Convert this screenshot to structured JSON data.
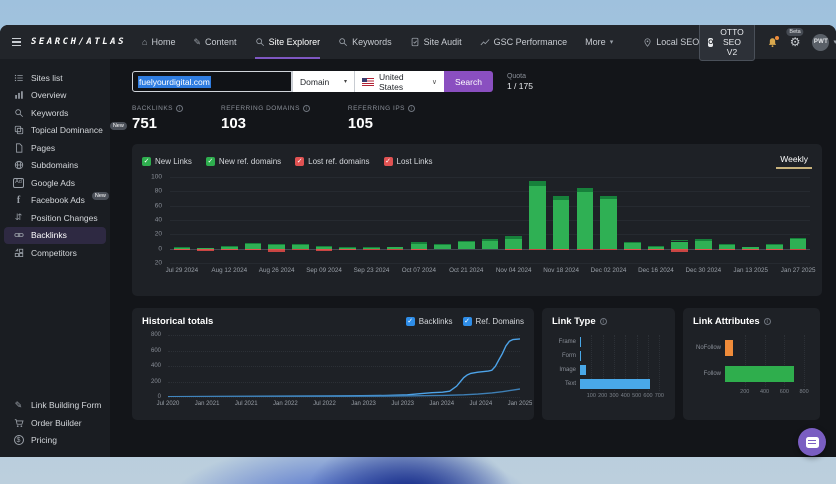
{
  "topnav": {
    "logo": "SEARCH/ATLAS",
    "items": [
      {
        "label": "Home",
        "icon": "home"
      },
      {
        "label": "Content",
        "icon": "pencil"
      },
      {
        "label": "Site Explorer",
        "icon": "search",
        "active": true
      },
      {
        "label": "Keywords",
        "icon": "search"
      },
      {
        "label": "Site Audit",
        "icon": "audit"
      },
      {
        "label": "GSC Performance",
        "icon": "chartline"
      },
      {
        "label": "More",
        "icon": "",
        "caret": true
      }
    ],
    "local_seo": "Local SEO",
    "otto_button": "OTTO SEO V2",
    "beta_badge": "Beta",
    "avatar": "PWT"
  },
  "sidebar": {
    "items": [
      {
        "label": "Sites list",
        "icon": "list"
      },
      {
        "label": "Overview",
        "icon": "bars"
      },
      {
        "label": "Keywords",
        "icon": "search"
      },
      {
        "label": "Topical Dominance",
        "icon": "copy",
        "badge": "New"
      },
      {
        "label": "Pages",
        "icon": "doc"
      },
      {
        "label": "Subdomains",
        "icon": "globe"
      },
      {
        "label": "Google Ads",
        "icon": "ad"
      },
      {
        "label": "Facebook Ads",
        "icon": "fb",
        "badge": "New"
      },
      {
        "label": "Position Changes",
        "icon": "updown"
      },
      {
        "label": "Backlinks",
        "icon": "chain",
        "active": true
      },
      {
        "label": "Competitors",
        "icon": "grid"
      }
    ],
    "footer_items": [
      {
        "label": "Link Building Form",
        "icon": "penrocket"
      },
      {
        "label": "Order Builder",
        "icon": "cart"
      },
      {
        "label": "Pricing",
        "icon": "dollar"
      }
    ]
  },
  "search": {
    "query": "fuelyourdigital.com",
    "type_select": "Domain",
    "country_select": "United States",
    "button": "Search",
    "quota_label": "Quota",
    "quota_value": "1 / 175"
  },
  "stats": [
    {
      "label": "BACKLINKS",
      "value": "751"
    },
    {
      "label": "REFERRING DOMAINS",
      "value": "103"
    },
    {
      "label": "REFERRING IPS",
      "value": "105"
    }
  ],
  "chart_data": [
    {
      "id": "weekly_changes",
      "type": "bar",
      "period_tab": "Weekly",
      "legend": [
        {
          "label": "New Links",
          "color": "#2eae4e"
        },
        {
          "label": "New ref. domains",
          "color": "#2eae4e"
        },
        {
          "label": "Lost ref. domains",
          "color": "#e05252"
        },
        {
          "label": "Lost Links",
          "color": "#e05252"
        }
      ],
      "x_labels": [
        "Jul 29 2024",
        "Aug 12 2024",
        "Aug 26 2024",
        "Sep 09 2024",
        "Sep 23 2024",
        "Oct 07 2024",
        "Oct 21 2024",
        "Nov 04 2024",
        "Nov 18 2024",
        "Dec 02 2024",
        "Dec 16 2024",
        "Dec 30 2024",
        "Jan 13 2025",
        "Jan 27 2025"
      ],
      "weeks": 27,
      "ylim": [
        -20,
        100
      ],
      "yticks": [
        100,
        80,
        60,
        40,
        20,
        0,
        -20
      ],
      "series": [
        {
          "name": "New Links",
          "color": "#2fb054",
          "values": [
            1,
            1,
            3,
            6,
            5,
            5,
            3,
            2,
            2,
            2,
            7,
            6,
            9,
            11,
            14,
            88,
            68,
            79,
            69,
            8,
            3,
            10,
            11,
            6,
            3,
            5,
            13
          ]
        },
        {
          "name": "New ref. domains",
          "color": "#17813b",
          "values": [
            1,
            0,
            1,
            2,
            1,
            1,
            1,
            1,
            1,
            0,
            2,
            1,
            2,
            2,
            3,
            7,
            5,
            6,
            5,
            2,
            1,
            2,
            2,
            1,
            0,
            1,
            2
          ]
        },
        {
          "name": "Lost ref. domains",
          "color": "#e0524f",
          "values": [
            -1,
            -2,
            -1,
            -1,
            -2,
            -1,
            -2,
            -1,
            -1,
            -1,
            -1,
            0,
            0,
            0,
            -1,
            0,
            -1,
            0,
            -1,
            -1,
            -1,
            -2,
            -1,
            -1,
            -1,
            -1,
            0
          ]
        },
        {
          "name": "Lost Links",
          "color": "#c94543",
          "values": [
            0,
            -1,
            0,
            0,
            -2,
            -1,
            -1,
            0,
            -1,
            -1,
            0,
            0,
            0,
            0,
            0,
            -1,
            0,
            -1,
            -1,
            0,
            0,
            -2,
            0,
            0,
            0,
            0,
            -1
          ]
        }
      ]
    },
    {
      "id": "historical_totals",
      "type": "line",
      "title": "Historical totals",
      "legend": [
        {
          "label": "Backlinks",
          "color": "#2e8de8"
        },
        {
          "label": "Ref. Domains",
          "color": "#2e8de8"
        }
      ],
      "x_labels": [
        "Jul 2020",
        "Jan 2021",
        "Jul 2021",
        "Jan 2022",
        "Jul 2022",
        "Jan 2023",
        "Jul 2023",
        "Jan 2024",
        "Jul 2024",
        "Jan 2025"
      ],
      "ylim": [
        0,
        800
      ],
      "yticks": [
        800,
        600,
        400,
        200,
        0
      ],
      "series": [
        {
          "name": "Backlinks",
          "color": "#4da3e8",
          "points": [
            [
              0,
              3
            ],
            [
              15,
              7
            ],
            [
              30,
              10
            ],
            [
              45,
              13
            ],
            [
              55,
              16
            ],
            [
              62,
              20
            ],
            [
              68,
              28
            ],
            [
              72,
              45
            ],
            [
              75,
              55
            ],
            [
              78,
              62
            ],
            [
              80,
              75
            ],
            [
              82,
              140
            ],
            [
              84,
              250
            ],
            [
              85,
              285
            ],
            [
              86,
              305
            ],
            [
              88,
              320
            ],
            [
              90,
              330
            ],
            [
              91,
              335
            ],
            [
              92,
              345
            ],
            [
              93,
              395
            ],
            [
              94,
              480
            ],
            [
              95,
              560
            ],
            [
              96,
              660
            ],
            [
              97,
              720
            ],
            [
              98,
              742
            ],
            [
              100,
              750
            ]
          ]
        },
        {
          "name": "Ref. Domains",
          "color": "#3e7fb5",
          "points": [
            [
              0,
              1
            ],
            [
              20,
              4
            ],
            [
              40,
              7
            ],
            [
              60,
              11
            ],
            [
              70,
              15
            ],
            [
              78,
              20
            ],
            [
              84,
              28
            ],
            [
              88,
              38
            ],
            [
              92,
              52
            ],
            [
              95,
              68
            ],
            [
              98,
              90
            ],
            [
              100,
              103
            ]
          ]
        }
      ]
    },
    {
      "id": "link_type",
      "type": "hbar",
      "title": "Link Type",
      "categories": [
        "Frame",
        "Form",
        "Image",
        "Text"
      ],
      "values": [
        5,
        6,
        50,
        620
      ],
      "xticks": [
        100,
        200,
        300,
        400,
        500,
        600,
        700
      ],
      "xmax": 750,
      "color": "#49a8e8"
    },
    {
      "id": "link_attributes",
      "type": "hbar",
      "title": "Link Attributes",
      "categories": [
        "NoFollow",
        "Follow"
      ],
      "values": [
        80,
        700
      ],
      "xticks": [
        200,
        400,
        600,
        800
      ],
      "xmax": 860,
      "colors": [
        "#f08c3a",
        "#2fae4d"
      ]
    }
  ]
}
